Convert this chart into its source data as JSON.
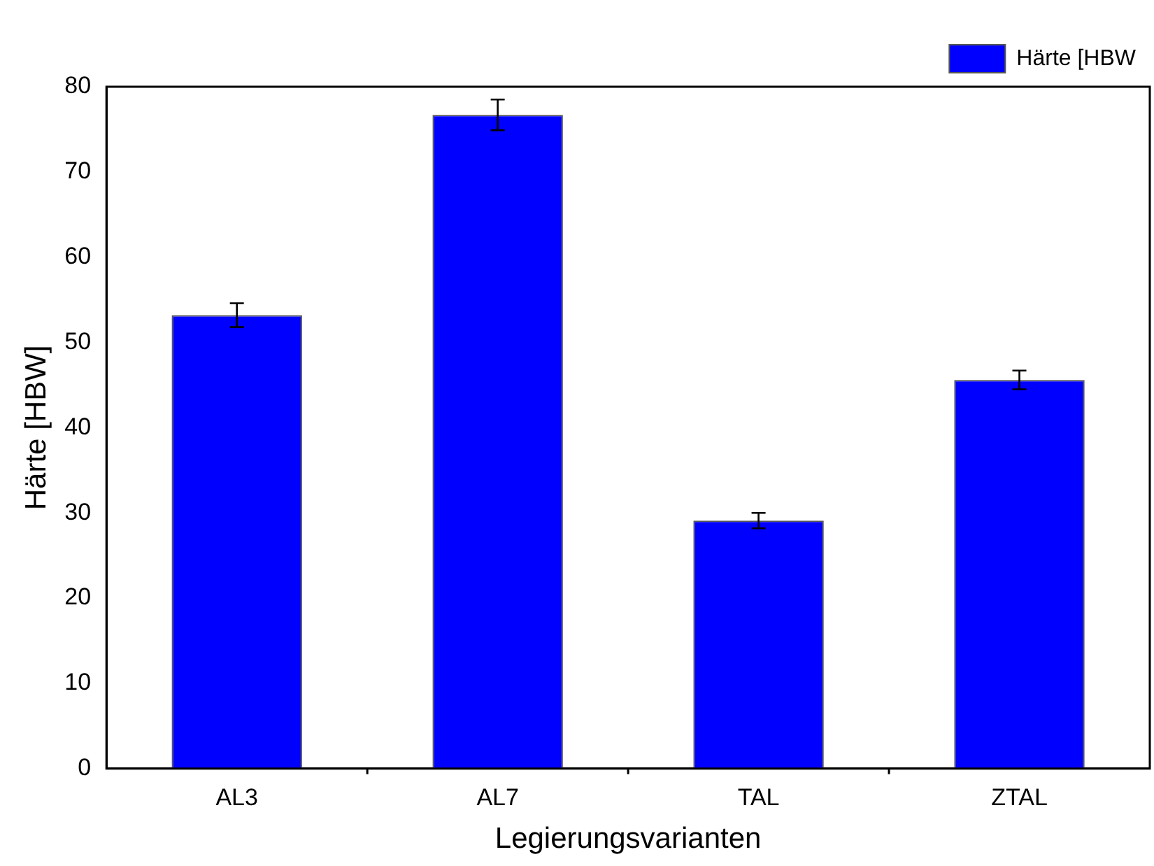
{
  "chart_data": {
    "type": "bar",
    "xlabel": "Legierungsvarianten",
    "ylabel": "Härte [HBW]",
    "categories": [
      "AL3",
      "AL7",
      "TAL",
      "ZTAL"
    ],
    "series": [
      {
        "name": "Härte [HBW",
        "color": "#0000ff",
        "values": [
          53.2,
          76.7,
          29.1,
          45.6
        ],
        "errors": [
          1.4,
          1.8,
          0.9,
          1.1
        ]
      }
    ],
    "ylim": [
      0,
      80
    ],
    "yticks": [
      0,
      10,
      20,
      30,
      40,
      50,
      60,
      70,
      80
    ],
    "grid": false,
    "legend": "top right"
  }
}
